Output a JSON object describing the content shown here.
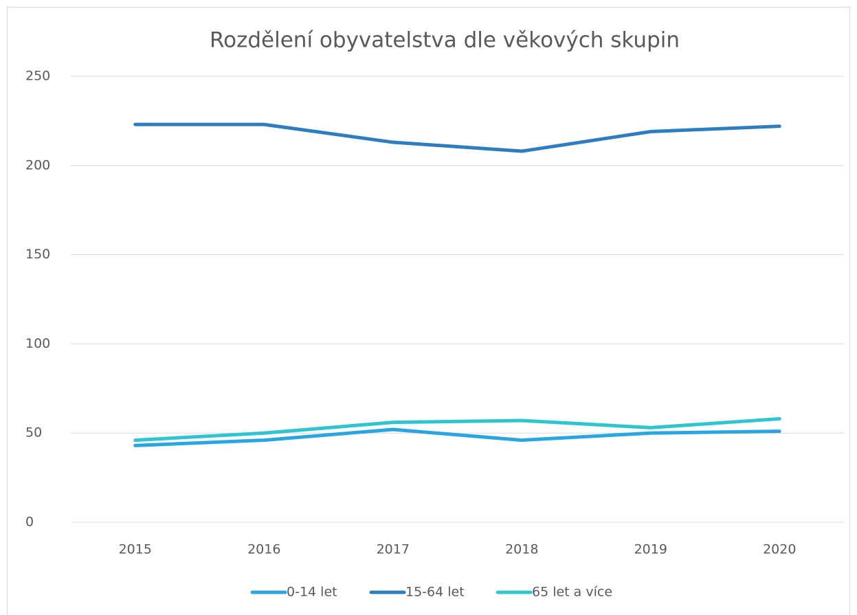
{
  "chart_data": {
    "type": "line",
    "title": "Rozdělení obyvatelstva dle věkových skupin",
    "categories": [
      "2015",
      "2016",
      "2017",
      "2018",
      "2019",
      "2020"
    ],
    "series": [
      {
        "name": "0-14 let",
        "color": "#29a6df",
        "values": [
          43,
          46,
          52,
          46,
          50,
          51
        ]
      },
      {
        "name": "15-64 let",
        "color": "#2e7ebf",
        "values": [
          223,
          223,
          213,
          208,
          219,
          222
        ]
      },
      {
        "name": "65 let a více",
        "color": "#2ec5cf",
        "values": [
          46,
          50,
          56,
          57,
          53,
          58
        ]
      }
    ],
    "ylim": [
      0,
      250
    ],
    "yticks": [
      0,
      50,
      100,
      150,
      200,
      250
    ],
    "grid": true,
    "legend": "bottom"
  }
}
